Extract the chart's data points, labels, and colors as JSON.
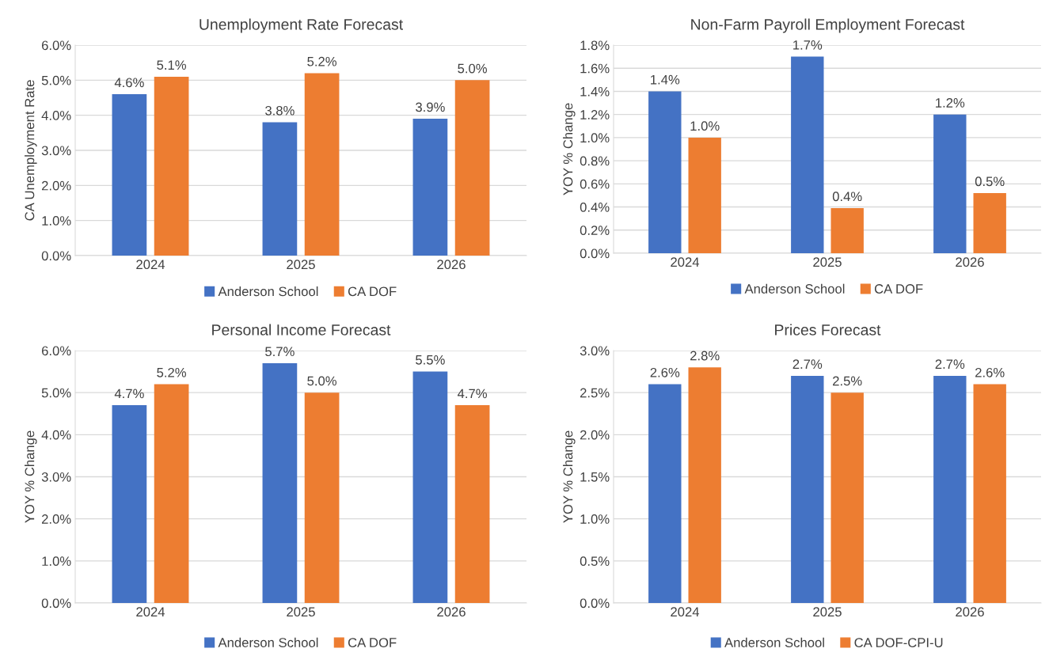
{
  "chart_data": [
    {
      "type": "bar",
      "title": "Unemployment Rate Forecast",
      "ylabel": "CA Unemployment Rate",
      "categories": [
        "2024",
        "2025",
        "2026"
      ],
      "series": [
        {
          "name": "Anderson School",
          "color": "#4472c4",
          "values": [
            4.6,
            3.8,
            3.9
          ],
          "value_labels": [
            "4.6%",
            "3.8%",
            "3.9%"
          ]
        },
        {
          "name": "CA DOF",
          "color": "#ed7d31",
          "values": [
            5.1,
            5.2,
            5.0
          ],
          "value_labels": [
            "5.1%",
            "5.2%",
            "5.0%"
          ]
        }
      ],
      "ylim": [
        0,
        6
      ],
      "yticks": [
        {
          "value": 0,
          "label": "0.0%"
        },
        {
          "value": 1,
          "label": "1.0%"
        },
        {
          "value": 2,
          "label": "2.0%"
        },
        {
          "value": 3,
          "label": "3.0%"
        },
        {
          "value": 4,
          "label": "4.0%"
        },
        {
          "value": 5,
          "label": "5.0%"
        },
        {
          "value": 6,
          "label": "6.0%"
        }
      ],
      "grid": "y",
      "legend": "bottom"
    },
    {
      "type": "bar",
      "title": "Non-Farm Payroll Employment Forecast",
      "ylabel": "YOY % Change",
      "categories": [
        "2024",
        "2025",
        "2026"
      ],
      "series": [
        {
          "name": "Anderson School",
          "color": "#4472c4",
          "values": [
            1.4,
            1.7,
            1.2
          ],
          "value_labels": [
            "1.4%",
            "1.7%",
            "1.2%"
          ]
        },
        {
          "name": "CA DOF",
          "color": "#ed7d31",
          "values": [
            1.0,
            0.39,
            0.52
          ],
          "value_labels": [
            "1.0%",
            "0.4%",
            "0.5%"
          ]
        }
      ],
      "ylim": [
        0,
        1.8
      ],
      "yticks": [
        {
          "value": 0,
          "label": "0.0%"
        },
        {
          "value": 0.2,
          "label": "0.2%"
        },
        {
          "value": 0.4,
          "label": "0.4%"
        },
        {
          "value": 0.6,
          "label": "0.6%"
        },
        {
          "value": 0.8,
          "label": "0.8%"
        },
        {
          "value": 1.0,
          "label": "1.0%"
        },
        {
          "value": 1.2,
          "label": "1.2%"
        },
        {
          "value": 1.4,
          "label": "1.4%"
        },
        {
          "value": 1.6,
          "label": "1.6%"
        },
        {
          "value": 1.8,
          "label": "1.8%"
        }
      ],
      "grid": "y",
      "legend": "bottom"
    },
    {
      "type": "bar",
      "title": "Personal Income Forecast",
      "ylabel": "YOY % Change",
      "categories": [
        "2024",
        "2025",
        "2026"
      ],
      "series": [
        {
          "name": "Anderson School",
          "color": "#4472c4",
          "values": [
            4.7,
            5.7,
            5.5
          ],
          "value_labels": [
            "4.7%",
            "5.7%",
            "5.5%"
          ]
        },
        {
          "name": "CA DOF",
          "color": "#ed7d31",
          "values": [
            5.2,
            5.0,
            4.7
          ],
          "value_labels": [
            "5.2%",
            "5.0%",
            "4.7%"
          ]
        }
      ],
      "ylim": [
        0,
        6
      ],
      "yticks": [
        {
          "value": 0,
          "label": "0.0%"
        },
        {
          "value": 1,
          "label": "1.0%"
        },
        {
          "value": 2,
          "label": "2.0%"
        },
        {
          "value": 3,
          "label": "3.0%"
        },
        {
          "value": 4,
          "label": "4.0%"
        },
        {
          "value": 5,
          "label": "5.0%"
        },
        {
          "value": 6,
          "label": "6.0%"
        }
      ],
      "grid": "y",
      "legend": "bottom"
    },
    {
      "type": "bar",
      "title": "Prices Forecast",
      "ylabel": "YOY % Change",
      "categories": [
        "2024",
        "2025",
        "2026"
      ],
      "series": [
        {
          "name": "Anderson School",
          "color": "#4472c4",
          "values": [
            2.6,
            2.7,
            2.7
          ],
          "value_labels": [
            "2.6%",
            "2.7%",
            "2.7%"
          ]
        },
        {
          "name": "CA DOF-CPI-U",
          "color": "#ed7d31",
          "values": [
            2.8,
            2.5,
            2.6
          ],
          "value_labels": [
            "2.8%",
            "2.5%",
            "2.6%"
          ]
        }
      ],
      "ylim": [
        0,
        3
      ],
      "yticks": [
        {
          "value": 0,
          "label": "0.0%"
        },
        {
          "value": 0.5,
          "label": "0.5%"
        },
        {
          "value": 1.0,
          "label": "1.0%"
        },
        {
          "value": 1.5,
          "label": "1.5%"
        },
        {
          "value": 2.0,
          "label": "2.0%"
        },
        {
          "value": 2.5,
          "label": "2.5%"
        },
        {
          "value": 3.0,
          "label": "3.0%"
        }
      ],
      "grid": "y",
      "legend": "bottom"
    }
  ]
}
